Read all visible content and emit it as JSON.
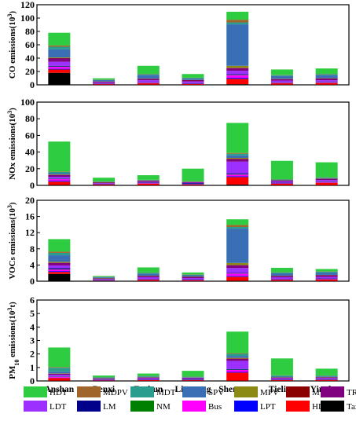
{
  "categories": [
    "Anshan",
    "Benxi",
    "Fushun",
    "Liaoyang",
    "Shenyang",
    "Tieling",
    "Yingkou"
  ],
  "legend": [
    {
      "name": "HDT",
      "color": "#2ecc40"
    },
    {
      "name": "MDPV",
      "color": "#a0652a"
    },
    {
      "name": "MDT",
      "color": "#2a9d8f"
    },
    {
      "name": "SPV",
      "color": "#3a6fb5"
    },
    {
      "name": "MPV",
      "color": "#8a8a14"
    },
    {
      "name": "MT",
      "color": "#8b0000"
    },
    {
      "name": "TR",
      "color": "#800080"
    },
    {
      "name": "LDT",
      "color": "#9b30ff"
    },
    {
      "name": "LM",
      "color": "#00008b"
    },
    {
      "name": "NM",
      "color": "#008000"
    },
    {
      "name": "Bus",
      "color": "#ff00ff"
    },
    {
      "name": "LPT",
      "color": "#0000ff"
    },
    {
      "name": "HDPV",
      "color": "#ff0000"
    },
    {
      "name": "Taxi",
      "color": "#000000"
    }
  ],
  "chart_data": [
    {
      "type": "bar",
      "ylabel_main": "CO emissions(10",
      "ylabel_sup": "3",
      "ylabel_tail": ")",
      "ylim": [
        0,
        120
      ],
      "yticks": [
        0,
        20,
        40,
        60,
        80,
        100,
        120
      ],
      "stacks": [
        {
          "Taxi": 18,
          "HDPV": 5,
          "LPT": 1,
          "Bus": 3,
          "NM": 0.5,
          "LM": 1,
          "LDT": 6,
          "TR": 5,
          "MT": 0.5,
          "MPV": 1,
          "SPV": 12,
          "MDT": 4,
          "MDPV": 2,
          "HDT": 19
        },
        {
          "Taxi": 0.2,
          "HDPV": 1,
          "LPT": 0.2,
          "Bus": 0.5,
          "NM": 0.1,
          "LM": 0.2,
          "LDT": 1.5,
          "TR": 1,
          "MT": 0.1,
          "MPV": 0.2,
          "SPV": 2,
          "MDT": 0.5,
          "MDPV": 0.3,
          "HDT": 2
        },
        {
          "Taxi": 0.3,
          "HDPV": 2,
          "LPT": 0.3,
          "Bus": 0.8,
          "NM": 0.2,
          "LM": 0.3,
          "LDT": 3,
          "TR": 2,
          "MT": 0.2,
          "MPV": 0.4,
          "SPV": 5,
          "MDT": 1.5,
          "MDPV": 0.5,
          "HDT": 12
        },
        {
          "Taxi": 0.2,
          "HDPV": 1.2,
          "LPT": 0.2,
          "Bus": 0.6,
          "NM": 0.1,
          "LM": 0.2,
          "LDT": 2.5,
          "TR": 2,
          "MT": 0.1,
          "MPV": 0.3,
          "SPV": 2,
          "MDT": 1,
          "MDPV": 0.3,
          "HDT": 5.5
        },
        {
          "Taxi": 1,
          "HDPV": 8,
          "LPT": 1.5,
          "Bus": 4,
          "NM": 0.5,
          "LM": 1,
          "LDT": 5,
          "TR": 4,
          "MT": 0.5,
          "MPV": 3,
          "SPV": 62,
          "MDT": 3,
          "MDPV": 4,
          "HDT": 12
        },
        {
          "Taxi": 0.3,
          "HDPV": 2,
          "LPT": 0.3,
          "Bus": 0.8,
          "NM": 0.2,
          "LM": 0.3,
          "LDT": 2.5,
          "TR": 2,
          "MT": 0.2,
          "MPV": 0.4,
          "SPV": 4,
          "MDT": 1.5,
          "MDPV": 0.5,
          "HDT": 8
        },
        {
          "Taxi": 0.3,
          "HDPV": 2.5,
          "LPT": 0.3,
          "Bus": 0.8,
          "NM": 0.2,
          "LM": 0.3,
          "LDT": 2.5,
          "TR": 2.5,
          "MT": 0.2,
          "MPV": 0.4,
          "SPV": 4.5,
          "MDT": 1.5,
          "MDPV": 0.5,
          "HDT": 8
        }
      ]
    },
    {
      "type": "bar",
      "ylabel_main": "NOx emissions(10",
      "ylabel_sup": "3",
      "ylabel_tail": ")",
      "ylim": [
        0,
        100
      ],
      "yticks": [
        0,
        20,
        40,
        60,
        80,
        100
      ],
      "stacks": [
        {
          "Taxi": 0.5,
          "HDPV": 4,
          "LPT": 1,
          "Bus": 2,
          "NM": 0.3,
          "LM": 0.5,
          "LDT": 2,
          "TR": 2,
          "MT": 0.3,
          "MPV": 0.5,
          "SPV": 1.5,
          "MDT": 1.5,
          "MDPV": 0.5,
          "HDT": 36
        },
        {
          "Taxi": 0.1,
          "HDPV": 1,
          "LPT": 0.2,
          "Bus": 0.3,
          "NM": 0.1,
          "LM": 0.2,
          "LDT": 0.8,
          "TR": 0.8,
          "MT": 0.1,
          "MPV": 0.2,
          "SPV": 0.3,
          "MDT": 0.4,
          "MDPV": 0.2,
          "HDT": 4.5
        },
        {
          "Taxi": 0.2,
          "HDPV": 2,
          "LPT": 0.3,
          "Bus": 0.5,
          "NM": 0.1,
          "LM": 0.2,
          "LDT": 1,
          "TR": 1,
          "MT": 0.1,
          "MPV": 0.2,
          "SPV": 0.4,
          "MDT": 0.5,
          "MDPV": 0.2,
          "HDT": 5.5
        },
        {
          "Taxi": 0.1,
          "HDPV": 1,
          "LPT": 0.2,
          "Bus": 0.3,
          "NM": 0.1,
          "LM": 1,
          "LDT": 0.6,
          "TR": 0.6,
          "MT": 0.1,
          "MPV": 0.2,
          "SPV": 0.3,
          "MDT": 0.4,
          "MDPV": 0.2,
          "HDT": 15
        },
        {
          "Taxi": 1,
          "HDPV": 9,
          "LPT": 1,
          "Bus": 2,
          "NM": 0.5,
          "LM": 1,
          "LDT": 14,
          "TR": 3,
          "MT": 0.5,
          "MPV": 1,
          "SPV": 3,
          "MDT": 2,
          "MDPV": 1,
          "HDT": 36
        },
        {
          "Taxi": 0.2,
          "HDPV": 2,
          "LPT": 0.2,
          "Bus": 0.5,
          "NM": 0.1,
          "LM": 0.3,
          "LDT": 1.5,
          "TR": 1,
          "MT": 0.1,
          "MPV": 0.2,
          "SPV": 0.5,
          "MDT": 0.7,
          "MDPV": 0.2,
          "HDT": 22
        },
        {
          "Taxi": 0.2,
          "HDPV": 3,
          "LPT": 0.3,
          "Bus": 0.5,
          "NM": 0.1,
          "LM": 0.3,
          "LDT": 2,
          "TR": 1.5,
          "MT": 0.1,
          "MPV": 0.2,
          "SPV": 0.5,
          "MDT": 0.8,
          "MDPV": 0.2,
          "HDT": 18
        }
      ]
    },
    {
      "type": "bar",
      "ylabel_main": "VOCs emissions(10",
      "ylabel_sup": "3",
      "ylabel_tail": ")",
      "ylim": [
        0,
        20
      ],
      "yticks": [
        0,
        4,
        8,
        12,
        16,
        20
      ],
      "stacks": [
        {
          "Taxi": 1.8,
          "HDPV": 0.5,
          "LPT": 0.2,
          "Bus": 0.4,
          "NM": 0.1,
          "LM": 0.2,
          "LDT": 0.7,
          "TR": 0.6,
          "MT": 0.1,
          "MPV": 0.2,
          "SPV": 1.6,
          "MDT": 0.6,
          "MDPV": 0.3,
          "HDT": 3.1
        },
        {
          "Taxi": 0.05,
          "HDPV": 0.1,
          "LPT": 0.05,
          "Bus": 0.05,
          "NM": 0.02,
          "LM": 0.05,
          "LDT": 0.2,
          "TR": 0.15,
          "MT": 0.02,
          "MPV": 0.05,
          "SPV": 0.2,
          "MDT": 0.1,
          "MDPV": 0.05,
          "HDT": 0.2
        },
        {
          "Taxi": 0.05,
          "HDPV": 0.3,
          "LPT": 0.05,
          "Bus": 0.1,
          "NM": 0.03,
          "LM": 0.05,
          "LDT": 0.4,
          "TR": 0.3,
          "MT": 0.03,
          "MPV": 0.05,
          "SPV": 0.5,
          "MDT": 0.2,
          "MDPV": 0.05,
          "HDT": 1.3
        },
        {
          "Taxi": 0.05,
          "HDPV": 0.2,
          "LPT": 0.05,
          "Bus": 0.1,
          "NM": 0.03,
          "LM": 0.05,
          "LDT": 0.3,
          "TR": 0.3,
          "MT": 0.03,
          "MPV": 0.05,
          "SPV": 0.3,
          "MDT": 0.15,
          "MDPV": 0.05,
          "HDT": 0.5
        },
        {
          "Taxi": 0.1,
          "HDPV": 1,
          "LPT": 0.2,
          "Bus": 0.6,
          "NM": 0.05,
          "LM": 0.1,
          "LDT": 1.2,
          "TR": 0.7,
          "MT": 0.05,
          "MPV": 0.5,
          "SPV": 8.5,
          "MDT": 0.4,
          "MDPV": 0.5,
          "HDT": 1.4
        },
        {
          "Taxi": 0.05,
          "HDPV": 0.3,
          "LPT": 0.05,
          "Bus": 0.1,
          "NM": 0.03,
          "LM": 0.05,
          "LDT": 0.4,
          "TR": 0.3,
          "MT": 0.03,
          "MPV": 0.05,
          "SPV": 0.6,
          "MDT": 0.2,
          "MDPV": 0.05,
          "HDT": 1.1
        },
        {
          "Taxi": 0.05,
          "HDPV": 0.4,
          "LPT": 0.05,
          "Bus": 0.1,
          "NM": 0.03,
          "LM": 0.05,
          "LDT": 0.4,
          "TR": 0.4,
          "MT": 0.03,
          "MPV": 0.05,
          "SPV": 0.6,
          "MDT": 0.2,
          "MDPV": 0.05,
          "HDT": 0.6
        }
      ]
    },
    {
      "type": "bar",
      "ylabel_main": "PM",
      "ylabel_sub": "10",
      "ylabel_mid": " emissions(10",
      "ylabel_sup": "3",
      "ylabel_tail": "t)",
      "ylim": [
        0,
        6
      ],
      "yticks": [
        0,
        1,
        2,
        3,
        4,
        5,
        6
      ],
      "stacks": [
        {
          "Taxi": 0.02,
          "HDPV": 0.2,
          "LPT": 0.02,
          "Bus": 0.06,
          "NM": 0.01,
          "LM": 0.02,
          "LDT": 0.12,
          "TR": 0.08,
          "MT": 0.01,
          "MPV": 0.02,
          "SPV": 0.12,
          "MDT": 0.3,
          "MDPV": 0.05,
          "HDT": 1.45
        },
        {
          "Taxi": 0.01,
          "HDPV": 0.04,
          "LPT": 0.01,
          "Bus": 0.02,
          "NM": 0.01,
          "LM": 0.01,
          "LDT": 0.05,
          "TR": 0.03,
          "MT": 0.01,
          "MPV": 0.01,
          "SPV": 0.03,
          "MDT": 0.04,
          "MDPV": 0.01,
          "HDT": 0.12
        },
        {
          "Taxi": 0.01,
          "HDPV": 0.06,
          "LPT": 0.01,
          "Bus": 0.02,
          "NM": 0.01,
          "LM": 0.01,
          "LDT": 0.08,
          "TR": 0.05,
          "MT": 0.01,
          "MPV": 0.01,
          "SPV": 0.04,
          "MDT": 0.05,
          "MDPV": 0.01,
          "HDT": 0.18
        },
        {
          "Taxi": 0.01,
          "HDPV": 0.05,
          "LPT": 0.01,
          "Bus": 0.02,
          "NM": 0.01,
          "LM": 0.05,
          "LDT": 0.05,
          "TR": 0.03,
          "MT": 0.01,
          "MPV": 0.01,
          "SPV": 0.03,
          "MDT": 0.04,
          "MDPV": 0.01,
          "HDT": 0.42
        },
        {
          "Taxi": 0.02,
          "HDPV": 0.6,
          "LPT": 0.05,
          "Bus": 0.15,
          "NM": 0.02,
          "LM": 0.05,
          "LDT": 0.6,
          "TR": 0.15,
          "MT": 0.02,
          "MPV": 0.05,
          "SPV": 0.15,
          "MDT": 0.15,
          "MDPV": 0.05,
          "HDT": 1.6
        },
        {
          "Taxi": 0.01,
          "HDPV": 0.06,
          "LPT": 0.01,
          "Bus": 0.02,
          "NM": 0.01,
          "LM": 0.01,
          "LDT": 0.08,
          "TR": 0.05,
          "MT": 0.01,
          "MPV": 0.01,
          "SPV": 0.05,
          "MDT": 0.08,
          "MDPV": 0.02,
          "HDT": 1.25
        },
        {
          "Taxi": 0.01,
          "HDPV": 0.07,
          "LPT": 0.01,
          "Bus": 0.02,
          "NM": 0.01,
          "LM": 0.01,
          "LDT": 0.08,
          "TR": 0.05,
          "MT": 0.01,
          "MPV": 0.01,
          "SPV": 0.05,
          "MDT": 0.06,
          "MDPV": 0.02,
          "HDT": 0.5
        }
      ]
    }
  ]
}
